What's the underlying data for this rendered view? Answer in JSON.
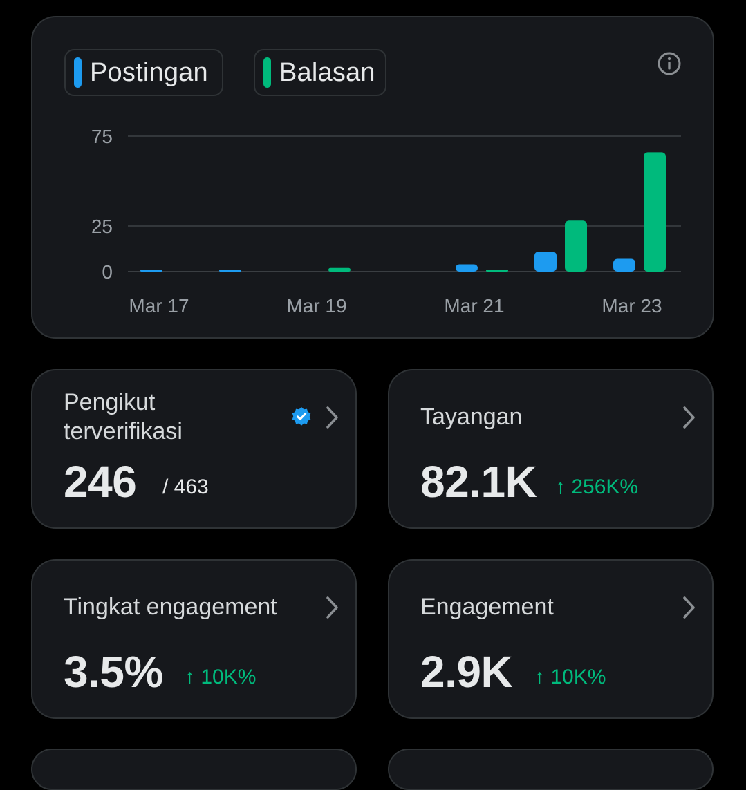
{
  "colors": {
    "posts": "#1d9bf0",
    "replies": "#00ba7c",
    "change": "#00ba7c",
    "card_bg": "#16181c",
    "border": "#2f3336"
  },
  "legend": [
    {
      "label": "Postingan",
      "color": "#1d9bf0"
    },
    {
      "label": "Balasan",
      "color": "#00ba7c"
    }
  ],
  "chart_data": {
    "type": "bar",
    "categories": [
      "Mar 17",
      "Mar 18",
      "Mar 19",
      "Mar 20",
      "Mar 21",
      "Mar 22",
      "Mar 23"
    ],
    "x_tick_labels": [
      "Mar 17",
      "Mar 19",
      "Mar 21",
      "Mar 23"
    ],
    "y_ticks": [
      0,
      25,
      75
    ],
    "ylim": [
      0,
      75
    ],
    "grid": true,
    "series": [
      {
        "name": "Postingan",
        "values": [
          1,
          1,
          0,
          0,
          4,
          11,
          7
        ]
      },
      {
        "name": "Balasan",
        "values": [
          0,
          0,
          2,
          0,
          1,
          28,
          66
        ]
      }
    ]
  },
  "stats": {
    "followers": {
      "title_line1": "Pengikut",
      "title_line2": "terverifikasi",
      "value": "246",
      "sub": "/ 463"
    },
    "views": {
      "title": "Tayangan",
      "value": "82.1K",
      "change": "↑ 256K%"
    },
    "engagement_rate": {
      "title": "Tingkat engagement",
      "value": "3.5%",
      "change": "↑ 10K%"
    },
    "engagement": {
      "title": "Engagement",
      "value": "2.9K",
      "change": "↑ 10K%"
    }
  }
}
